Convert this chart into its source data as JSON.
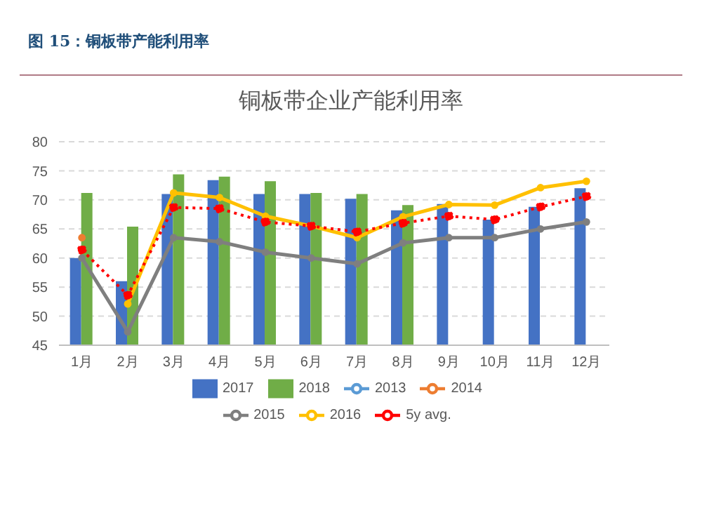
{
  "chart_data": {
    "type": "bar",
    "title": "铜板带企业产能利用率",
    "subtitle": "图 15：铜板带产能利用率",
    "categories": [
      "1月",
      "2月",
      "3月",
      "4月",
      "5月",
      "6月",
      "7月",
      "8月",
      "9月",
      "10月",
      "11月",
      "12月"
    ],
    "series": [
      {
        "name": "2017",
        "color": "#4472c4",
        "values": [
          60,
          56,
          71,
          73.4,
          71,
          71,
          70.2,
          68.2,
          69.3,
          66.6,
          68.8,
          72
        ]
      },
      {
        "name": "2018",
        "color": "#70ad47",
        "values": [
          71.2,
          65.4,
          74.4,
          74,
          73.2,
          71.2,
          71,
          69.1,
          null,
          null,
          null,
          null
        ]
      },
      {
        "name": "2013",
        "type": "line",
        "color": "#5b9bd5",
        "marker": "circle",
        "line_style": "solid",
        "values": [
          null,
          null,
          null,
          null,
          null,
          null,
          null,
          null,
          null,
          null,
          null,
          null
        ]
      },
      {
        "name": "2014",
        "type": "line",
        "color": "#ed7d31",
        "marker": "circle",
        "line_style": "solid",
        "values": [
          63.5,
          null,
          null,
          null,
          null,
          null,
          null,
          null,
          null,
          null,
          null,
          null
        ]
      },
      {
        "name": "2015",
        "type": "line",
        "color": "#7f7f7f",
        "marker": "circle",
        "line_style": "solid",
        "values": [
          60,
          47.3,
          63.5,
          62.8,
          61,
          60,
          59,
          62.6,
          63.5,
          63.5,
          65,
          66.2
        ]
      },
      {
        "name": "2016",
        "type": "line",
        "color": "#ffc000",
        "marker": "circle",
        "line_style": "solid",
        "values": [
          null,
          52.1,
          71.2,
          70.4,
          67.2,
          65.5,
          63.5,
          67.1,
          69.2,
          69.1,
          72.1,
          73.2
        ]
      },
      {
        "name": "5y avg.",
        "type": "line",
        "color": "#ff0000",
        "marker": "circle",
        "line_style": "dotted",
        "values": [
          61.4,
          53.6,
          68.7,
          68.5,
          66.2,
          65.5,
          64.5,
          66,
          67.2,
          66.6,
          68.8,
          70.6
        ]
      }
    ],
    "ylim": [
      45,
      80
    ],
    "yticks": [
      45,
      50,
      55,
      60,
      65,
      70,
      75,
      80
    ],
    "grid": "y",
    "legend": "bottom"
  }
}
